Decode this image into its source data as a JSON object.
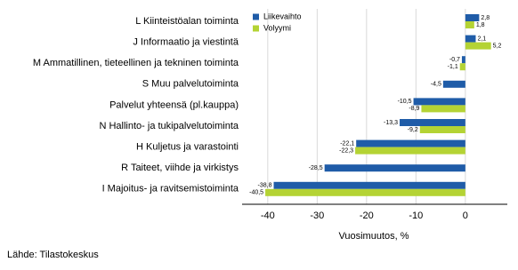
{
  "chart_data": {
    "type": "hbar",
    "categories": [
      "L Kiinteistöalan toiminta",
      "J Informaatio ja viestintä",
      "M Ammatillinen, tieteellinen ja tekninen toiminta",
      "S Muu palvelutoiminta",
      "Palvelut yhteensä (pl.kauppa)",
      "N Hallinto- ja tukipalvelutoiminta",
      "H Kuljetus ja varastointi",
      "R Taiteet, viihde ja virkistys",
      "I Majoitus- ja ravitsemistoiminta"
    ],
    "series": [
      {
        "name": "Liikevaihto",
        "color": "#1f5ca8",
        "values": [
          2.8,
          2.1,
          -0.7,
          -4.5,
          -10.5,
          -13.3,
          -22.1,
          -28.5,
          -38.8
        ],
        "value_labels": [
          "2,8",
          "2,1",
          "-0,7",
          "-4,5",
          "-10,5",
          "-13,3",
          "-22,1",
          "-28,5",
          "-38,8"
        ]
      },
      {
        "name": "Volyymi",
        "color": "#b4d334",
        "values": [
          1.8,
          5.2,
          -1.1,
          null,
          -8.9,
          -9.2,
          -22.3,
          null,
          -40.5
        ],
        "value_labels": [
          "1,8",
          "5,2",
          "-1,1",
          null,
          "-8,9",
          "-9,2",
          "-22,3",
          null,
          "-40,5"
        ]
      }
    ],
    "xlabel": "Vuosimuutos, %",
    "xlim": [
      -45.2,
      8.5
    ],
    "xticks": [
      -40,
      -30,
      -20,
      -10,
      0
    ],
    "grid": true,
    "source": "Lähde: Tilastokeskus"
  }
}
